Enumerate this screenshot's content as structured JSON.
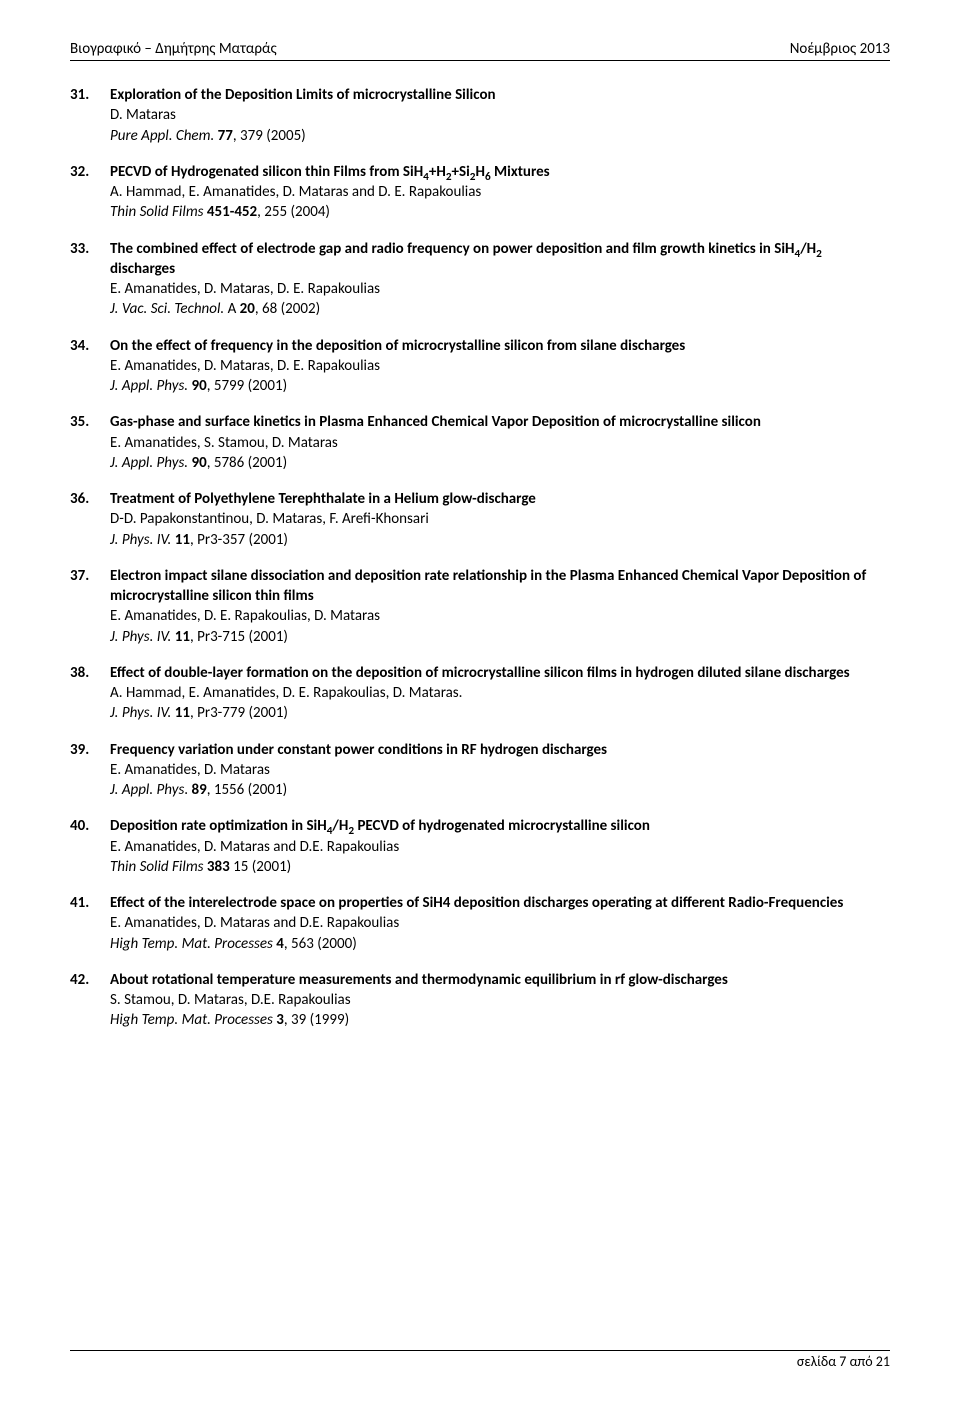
{
  "header": {
    "left": "Βιογραφικό – Δημήτρης Ματαράς",
    "right": "Νοέμβριος 2013"
  },
  "entries": [
    {
      "num": "31.",
      "title_html": "Exploration of the Deposition Limits of microcrystalline Silicon",
      "authors": "D. Mataras",
      "journal_html": "<span class='ital'>Pure Appl. Chem.</span> <span class='bold'>77</span>, 379 (2005)"
    },
    {
      "num": "32.",
      "title_html": "PECVD of Hydrogenated silicon thin Films from SiH<sub>4</sub>+H<sub>2</sub>+Si<sub>2</sub>H<sub>6</sub> Mixtures",
      "authors": "A. Hammad, E. Amanatides, D. Mataras and D. E. Rapakoulias",
      "journal_html": "<span class='ital'>Thin Solid Films</span> <span class='bold'>451-452</span>, 255 (2004)"
    },
    {
      "num": "33.",
      "title_html": "The combined effect of electrode gap and radio frequency on power deposition and film growth kinetics in SiH<sub>4</sub>/H<sub>2</sub> discharges",
      "authors": "E. Amanatides, D. Mataras, D. E. Rapakoulias",
      "journal_html": "<span class='ital'>J. Vac. Sci. Technol.</span> A <span class='bold'>20</span>, 68 (2002)"
    },
    {
      "num": "34.",
      "title_html": "On the effect of frequency in the deposition of microcrystalline silicon from silane discharges",
      "authors": "E. Amanatides, D. Mataras, D. E. Rapakoulias",
      "journal_html": "<span class='ital'>J. Appl. Phys.</span> <span class='bold'>90</span>, 5799 (2001)"
    },
    {
      "num": "35.",
      "title_html": "Gas-phase and surface kinetics in Plasma Enhanced Chemical Vapor Deposition of microcrystalline silicon",
      "authors": "E. Amanatides, S. Stamou, D. Mataras",
      "journal_html": "<span class='ital'>J. Appl. Phys.</span> <span class='bold'>90</span>, 5786 (2001)"
    },
    {
      "num": "36.",
      "title_html": "Treatment of Polyethylene Terephthalate in a Helium glow-discharge",
      "authors": "D-D. Papakonstantinou, D. Mataras, F. Arefi-Khonsari",
      "journal_html": "<span class='ital'>J. Phys. IV.</span> <span class='bold'>11</span>, Pr3-357 (2001)"
    },
    {
      "num": "37.",
      "title_html": "Electron impact silane dissociation and deposition rate relationship in the Plasma Enhanced Chemical Vapor Deposition of microcrystalline silicon thin films",
      "authors": "E. Amanatides, D. E. Rapakoulias, D. Mataras",
      "journal_html": "<span class='ital'>J. Phys. IV.</span> <span class='bold'>11</span>, Pr3-715 (2001)"
    },
    {
      "num": "38.",
      "title_html": "Effect of double-layer formation on the deposition of microcrystalline silicon films in hydrogen diluted silane discharges",
      "authors": "A. Hammad, E. Amanatides, D. E. Rapakoulias, D. Mataras.",
      "journal_html": "<span class='ital'>J. Phys. IV.</span> <span class='bold'>11</span>, Pr3-779 (2001)"
    },
    {
      "num": "39.",
      "title_html": "Frequency variation under constant power conditions in RF hydrogen discharges",
      "authors": "E. Amanatides, D. Mataras",
      "journal_html": "<span class='ital'>J. Appl. Phys</span>. <span class='bold'>89</span>, 1556 (2001)"
    },
    {
      "num": "40.",
      "title_html": "Deposition rate optimization in SiH<sub>4</sub>/H<sub>2</sub> PECVD of hydrogenated microcrystalline silicon",
      "authors": "E. Amanatides, D. Mataras and D.E. Rapakoulias",
      "journal_html": "<span class='ital'>Thin Solid Films</span> <span class='bold'>383</span> 15 (2001)"
    },
    {
      "num": "41.",
      "title_html": "Effect of the interelectrode space on properties of SiH4 deposition discharges operating at different Radio-Frequencies",
      "authors": "E. Amanatides, D. Mataras and D.E. Rapakoulias",
      "journal_html": "<span class='ital'>High Temp. Mat. Processes</span> <span class='bold'>4</span>, 563 (2000)"
    },
    {
      "num": "42.",
      "title_html": "About rotational temperature measurements and thermodynamic equilibrium in rf glow-discharges",
      "authors": "S. Stamou, D. Mataras, D.E. Rapakoulias",
      "journal_html": "<span class='ital'>High Temp. Mat. Processes</span> <span class='bold'>3</span>, 39 (1999)"
    }
  ],
  "footer": {
    "text": "σελίδα 7 από 21"
  }
}
